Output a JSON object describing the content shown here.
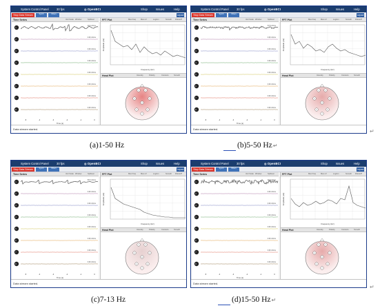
{
  "app": {
    "title": "System Control Panel",
    "fps": "30 fps",
    "logo": "OpenBCI",
    "menu": [
      "Shop",
      "Issues",
      "Help"
    ],
    "stop_button": "Stop Data Stream",
    "toolbar_buttons": [
      "Synth",
      "Filters"
    ],
    "layout_button": "Layout",
    "status": "Data stream started."
  },
  "time_series": {
    "label": "Time Series",
    "controls": [
      "Vert Scale",
      "Window",
      "Spillover"
    ],
    "scale_labels": [
      "50.0 uVrms",
      "0.00 uVrms",
      "0.00 uVrms",
      "0.00 uVrms",
      "0.00 uVrms",
      "0.00 uVrms",
      "0.00 uVrms",
      "0.00 uVrms"
    ],
    "x_ticks": [
      "-5",
      "-4",
      "-3",
      "-2",
      "-1",
      "0"
    ],
    "x_label": "Time (s)"
  },
  "fft": {
    "label": "FFT Plot",
    "controls": [
      "Max Freq",
      "Max uV",
      "Log/Lin",
      "Smooth",
      "Filtered?"
    ],
    "y_label": "Amplitude (uV)",
    "x_label": "Frequency (Hz)"
  },
  "head_plot": {
    "label": "Head Plot",
    "controls": [
      "Intensity",
      "Polarity",
      "Contours",
      "Smooth"
    ]
  },
  "panels": [
    {
      "caption": "(a)1-50 Hz",
      "scale_top": "40.0 uVrms"
    },
    {
      "caption": "(b)5-50 Hz",
      "scale_top": "57.8 uVrms"
    },
    {
      "caption": "(c)7-13 Hz",
      "scale_top": "50.0 uVrms"
    },
    {
      "caption": "(d)15-50 Hz",
      "scale_top": "40.0 uVrms"
    }
  ],
  "colors": {
    "header": "#1b3d6e",
    "stop": "#d9342b",
    "channel_lines": [
      "#a7a7a7",
      "#b07aa7",
      "#7c83c2",
      "#6aa86a",
      "#d0c354",
      "#e0a04a",
      "#df6d5a",
      "#9a7d52"
    ]
  }
}
